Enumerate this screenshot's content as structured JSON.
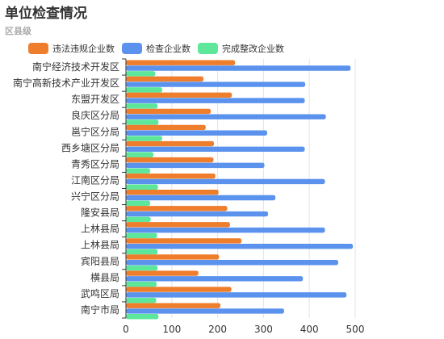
{
  "header": {
    "title": "单位检查情况",
    "subtitle": "区县级"
  },
  "legend": {
    "items": [
      {
        "label": "违法违规企业数",
        "color": "#ee7d2c"
      },
      {
        "label": "检查企业数",
        "color": "#5a92ee"
      },
      {
        "label": "完成整改企业数",
        "color": "#5de79a"
      }
    ]
  },
  "chart_data": {
    "type": "bar",
    "orientation": "horizontal",
    "title": "单位检查情况",
    "subtitle": "区县级",
    "categories": [
      "南宁经济技术开发区",
      "南宁高新技术产业开发区",
      "东盟开发区",
      "良庆区分局",
      "邕宁区分局",
      "西乡塘区分局",
      "青秀区分局",
      "江南区分局",
      "兴宁区分局",
      "隆安县局",
      "上林县局",
      "上林县局",
      "宾阳县局",
      "横县局",
      "武鸣区局",
      "南宁市局"
    ],
    "series": [
      {
        "name": "违法违规企业数",
        "color": "#ee7d2c",
        "values": [
          238,
          169,
          231,
          185,
          174,
          192,
          191,
          195,
          202,
          221,
          227,
          252,
          203,
          158,
          230,
          206
        ]
      },
      {
        "name": "检查企业数",
        "color": "#5a92ee",
        "values": [
          490,
          391,
          390,
          436,
          308,
          390,
          302,
          434,
          326,
          310,
          434,
          495,
          463,
          386,
          481,
          345
        ]
      },
      {
        "name": "完成整改企业数",
        "color": "#5de79a",
        "values": [
          64,
          79,
          69,
          71,
          79,
          60,
          53,
          70,
          53,
          54,
          68,
          69,
          69,
          67,
          66,
          71
        ]
      }
    ],
    "xlim": [
      0,
      500
    ],
    "xticks": [
      0,
      100,
      200,
      300,
      400,
      500
    ],
    "grid": true,
    "legend_position": "top"
  }
}
